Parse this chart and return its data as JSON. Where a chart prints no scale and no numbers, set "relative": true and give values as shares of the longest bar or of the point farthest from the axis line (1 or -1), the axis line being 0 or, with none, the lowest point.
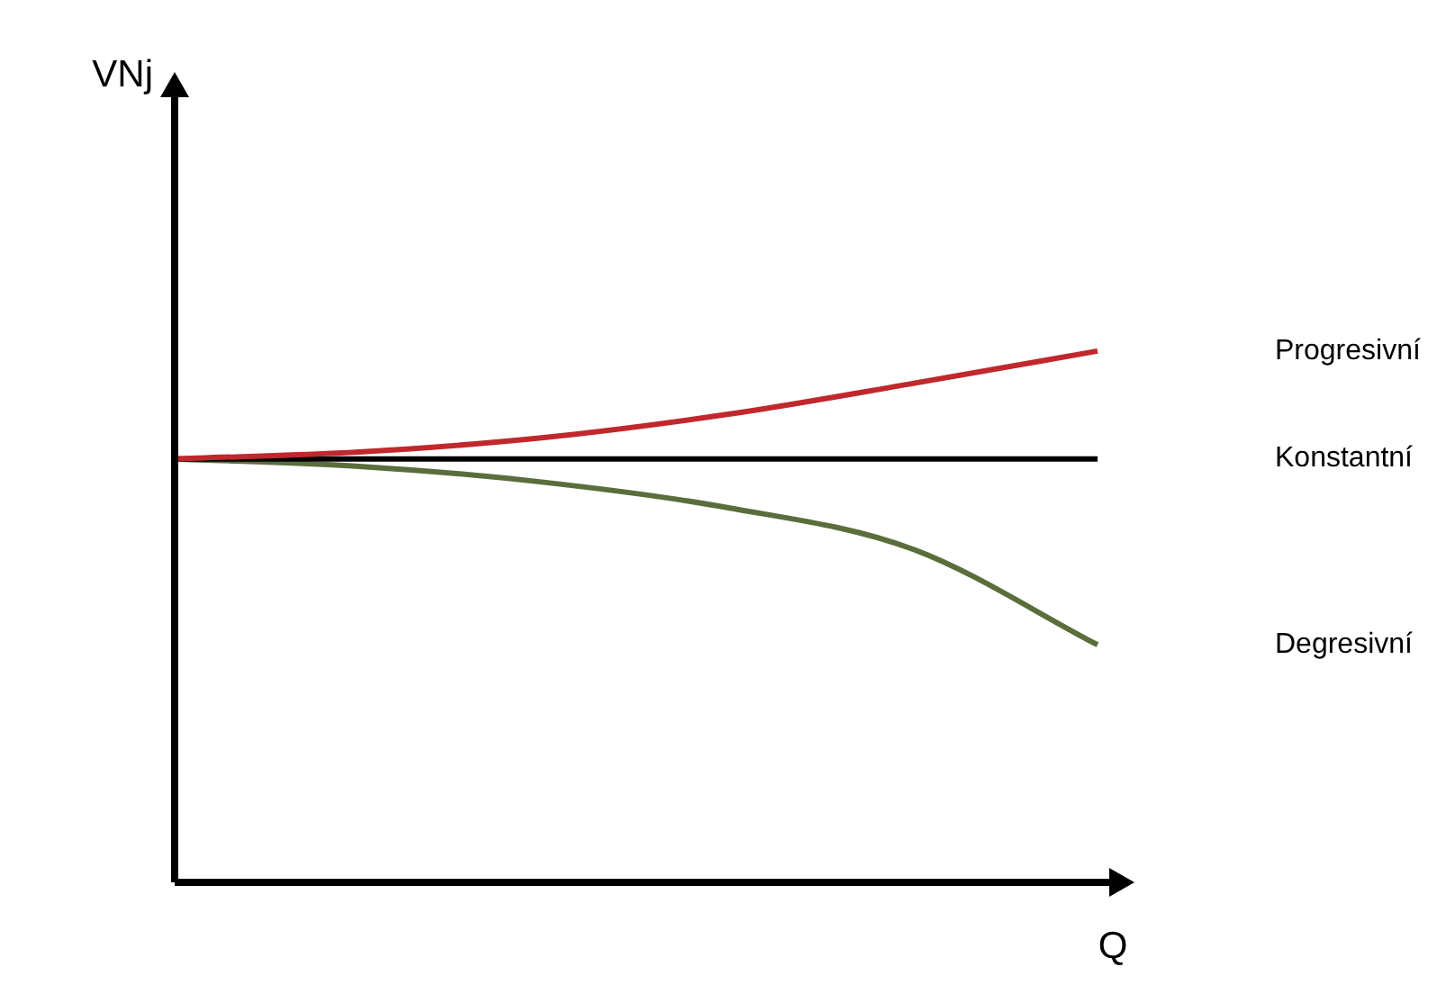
{
  "chart_data": {
    "type": "line",
    "relative": true,
    "xlabel": "Q",
    "annotations": [
      "VNj"
    ],
    "legend": false,
    "marker": "none",
    "line_style": "solid",
    "categories": [
      null,
      null,
      null,
      null,
      null,
      null
    ],
    "series": [
      {
        "name": "Progresivní",
        "color": "#c0282d",
        "values": [
          0.797,
          0.81,
          0.837,
          0.881,
          0.939,
          1
        ]
      },
      {
        "name": "Konstantní",
        "color": "#000000",
        "values": [
          0.797,
          0.797,
          0.797,
          0.797,
          0.797,
          0.797
        ]
      },
      {
        "name": "Degresivní",
        "color": "#5a6e3c",
        "values": [
          0.797,
          0.783,
          0.753,
          0.705,
          0.627,
          0.447
        ]
      }
    ]
  }
}
